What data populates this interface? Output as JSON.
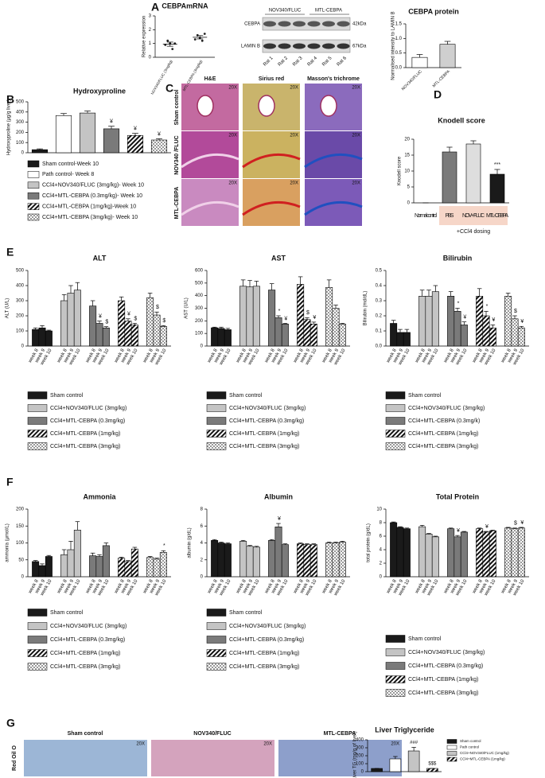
{
  "panel_labels": [
    "A",
    "B",
    "C",
    "D",
    "E",
    "F",
    "G"
  ],
  "blot": {
    "rows": [
      "CEBPA",
      "LAMIN B"
    ],
    "sizes": [
      "42kDa",
      "67kDa"
    ],
    "lanes": [
      "Rat 1",
      "Rat 2",
      "Rat 3",
      "Rat 4",
      "Rat 5",
      "Rat 6"
    ],
    "groups": [
      "NOV340/FLUC",
      "MTL-CEBPA"
    ]
  },
  "histology": {
    "columns": [
      "H&E",
      "Sirius red",
      "Masson's trichrome"
    ],
    "rows": [
      "Sham control",
      "NOV340 /FLUC",
      "MTL-CEBPA"
    ],
    "magnification": "20X"
  },
  "oil_red": {
    "columns": [
      "Sham control",
      "NOV340/FLUC",
      "MTL-CEBPA"
    ],
    "row": "Red Oil O",
    "magnification": "20X"
  },
  "chart_data": [
    {
      "type": "dot",
      "title": "CEBPAmRNA",
      "ylabel": "Relative expression",
      "categories": [
        "NOV340/FLUC (3mg/kg)",
        "MTL-CEBPA (3mg/kg)"
      ],
      "points": [
        [
          0.9,
          1.2,
          1.0,
          0.6,
          1.0
        ],
        [
          1.3,
          1.6,
          1.4,
          1.2,
          1.7
        ]
      ],
      "values": [
        0.95,
        1.45
      ],
      "errors": [
        0.15,
        0.12
      ],
      "ylim": [
        0,
        3
      ],
      "yticks": [
        0,
        1,
        2,
        3
      ]
    },
    {
      "type": "bar",
      "title": "CEBPA protein",
      "ylabel": "Normalised intensity to LAMIN B",
      "categories": [
        "NOV340/FLUC",
        "MTL-CEBPA"
      ],
      "values": [
        0.35,
        0.8
      ],
      "errors": [
        0.1,
        0.1
      ],
      "colors": [
        "#ffffff",
        "#cfcfcf"
      ],
      "patterns": [
        null,
        null
      ],
      "ylim": [
        0,
        1.5
      ],
      "yticks": [
        {
          "value": 0,
          "label": "0.0"
        },
        0.5,
        {
          "value": 1,
          "label": "1.0"
        },
        1.5
      ]
    },
    {
      "type": "bar",
      "title": "Hydroxyproline",
      "ylabel": "Hydroxyproline (µg/g liver)",
      "categories": [
        "Sham control-Week 10",
        "Path control- Week 8",
        "CCl4+NOV340/FLUC (3mg/kg)- Week 10",
        "CCl4+MTL-CEBPA (0.3mg/kg)- Week 10",
        "CCl4+MTL-CEBPA (1mg/kg)-Week 10",
        "CCl4+MTL-CEBPA (3mg/kg)- Week 10"
      ],
      "values": [
        30,
        365,
        390,
        235,
        170,
        125
      ],
      "errors": [
        8,
        20,
        20,
        25,
        20,
        12
      ],
      "annotations": [
        null,
        null,
        null,
        "¥",
        "¥",
        "¥"
      ],
      "colors": [
        "#1a1a1a",
        "#ffffff",
        "#c4c4c4",
        "#7a7a7a",
        "#ffffff",
        "#ffffff"
      ],
      "patterns": [
        null,
        null,
        null,
        null,
        "hatch",
        "check"
      ],
      "legend": "below",
      "ylim": [
        0,
        500
      ],
      "yticks": [
        0,
        100,
        200,
        300,
        400,
        500
      ]
    },
    {
      "type": "bar",
      "title": "Knodell score",
      "ylabel": "Knodell score",
      "categories": [
        "Normal control",
        "PBS",
        "NOV+ FLUC",
        "MTL- CEBPA"
      ],
      "values": [
        0,
        16,
        18.5,
        9
      ],
      "errors": [
        0,
        1.5,
        1,
        1.5
      ],
      "annotations": [
        null,
        null,
        null,
        "***"
      ],
      "group_label": "+CCl4 dosing",
      "colors": [
        "#444444",
        "#7a7a7a",
        "#dedede",
        "#1a1a1a"
      ],
      "patterns": [
        null,
        null,
        null,
        null
      ],
      "ylim": [
        0,
        20
      ],
      "yticks": [
        0,
        5,
        10,
        15,
        20
      ]
    },
    {
      "type": "grouped_bar",
      "title": "ALT",
      "ylabel": "ALT (U/L)",
      "categories": [
        "week 8",
        "week 9",
        "week 10"
      ],
      "ylim": [
        0,
        500
      ],
      "yticks": [
        0,
        100,
        200,
        300,
        400,
        500
      ],
      "series": [
        {
          "name": "Sham control",
          "color": "#1a1a1a",
          "pattern": null,
          "values": [
            110,
            120,
            100
          ],
          "errors": [
            10,
            15,
            5
          ],
          "annotations": [
            null,
            null,
            null
          ]
        },
        {
          "name": "CCl4+NOV340/FLUC (3mg/kg)",
          "color": "#c4c4c4",
          "pattern": null,
          "values": [
            300,
            350,
            370
          ],
          "errors": [
            40,
            50,
            50
          ],
          "annotations": [
            null,
            null,
            null
          ]
        },
        {
          "name": "CCl4+MTL-CEBPA (0.3mg/kg)",
          "color": "#7a7a7a",
          "pattern": null,
          "values": [
            265,
            150,
            120
          ],
          "errors": [
            35,
            15,
            8
          ],
          "annotations": [
            null,
            "¥",
            "$"
          ]
        },
        {
          "name": "CCl4+MTL-CEBPA (1mg/kg)",
          "color": "#ffffff",
          "pattern": "hatch",
          "values": [
            300,
            165,
            140
          ],
          "errors": [
            25,
            15,
            10
          ],
          "annotations": [
            null,
            "¥",
            "$"
          ]
        },
        {
          "name": "CCl4+MTL-CEBPA (3mg/kg)",
          "color": "#ffffff",
          "pattern": "check",
          "values": [
            320,
            205,
            130
          ],
          "errors": [
            30,
            20,
            5
          ],
          "annotations": [
            null,
            "$",
            "$"
          ]
        }
      ]
    },
    {
      "type": "grouped_bar",
      "title": "AST",
      "ylabel": "AST (U/L)",
      "categories": [
        "week 8",
        "week 9",
        "week 10"
      ],
      "ylim": [
        0,
        600
      ],
      "yticks": [
        0,
        100,
        200,
        300,
        400,
        500,
        600
      ],
      "series": [
        {
          "name": "Sham control",
          "color": "#1a1a1a",
          "pattern": null,
          "values": [
            145,
            140,
            130
          ],
          "errors": [
            5,
            10,
            10
          ],
          "annotations": [
            null,
            null,
            null
          ]
        },
        {
          "name": "CCl4+NOV340/FLUC (3mg/kg)",
          "color": "#c4c4c4",
          "pattern": null,
          "values": [
            475,
            470,
            475
          ],
          "errors": [
            50,
            50,
            40
          ],
          "annotations": [
            null,
            null,
            null
          ]
        },
        {
          "name": "CCl4+MTL-CEBPA (0.3mg/kg)",
          "color": "#7a7a7a",
          "pattern": null,
          "values": [
            445,
            225,
            175
          ],
          "errors": [
            50,
            15,
            5
          ],
          "annotations": [
            null,
            "*",
            "¥"
          ]
        },
        {
          "name": "CCl4+MTL-CEBPA (1mg/kg)",
          "color": "#ffffff",
          "pattern": "hatch",
          "values": [
            490,
            210,
            175
          ],
          "errors": [
            60,
            15,
            15
          ],
          "annotations": [
            null,
            "$",
            "¥"
          ]
        },
        {
          "name": "CCl4+MTL-CEBPA (3mg/kg)",
          "color": "#ffffff",
          "pattern": "check",
          "values": [
            465,
            300,
            175
          ],
          "errors": [
            60,
            25,
            5
          ],
          "annotations": [
            null,
            null,
            null
          ]
        }
      ]
    },
    {
      "type": "grouped_bar",
      "title": "Bilirubin",
      "ylabel": "Bilirubin (md/dL)",
      "categories": [
        "week 8",
        "week 9",
        "week 10"
      ],
      "ylim": [
        0,
        0.5
      ],
      "yticks": [
        {
          "value": 0,
          "label": "0.0"
        },
        0.1,
        0.2,
        0.3,
        0.4,
        0.5
      ],
      "series": [
        {
          "name": "Sham control",
          "color": "#1a1a1a",
          "pattern": null,
          "values": [
            0.15,
            0.09,
            0.09
          ],
          "errors": [
            0.02,
            0.02,
            0.02
          ],
          "annotations": [
            null,
            null,
            null
          ]
        },
        {
          "name": "CCl4+NOV340/FLUC (3mg/kg)",
          "color": "#c4c4c4",
          "pattern": null,
          "values": [
            0.33,
            0.33,
            0.36
          ],
          "errors": [
            0.04,
            0.04,
            0.04
          ],
          "annotations": [
            null,
            null,
            null
          ]
        },
        {
          "name": "CCl4+MTL-CEBPA (0.3mg/k)",
          "color": "#7a7a7a",
          "pattern": null,
          "values": [
            0.33,
            0.23,
            0.14
          ],
          "errors": [
            0.03,
            0.02,
            0.02
          ],
          "annotations": [
            null,
            "*",
            "¥"
          ]
        },
        {
          "name": "CCl4+MTL-CEBPA (1mg/kg)",
          "color": "#ffffff",
          "pattern": "hatch",
          "values": [
            0.33,
            0.2,
            0.12
          ],
          "errors": [
            0.05,
            0.03,
            0.02
          ],
          "annotations": [
            null,
            "*",
            "¥"
          ]
        },
        {
          "name": "CCl4+MTL-CEBPA (3mg/kg)",
          "color": "#ffffff",
          "pattern": "check",
          "values": [
            0.33,
            0.18,
            0.12
          ],
          "errors": [
            0.02,
            0.02,
            0.01
          ],
          "annotations": [
            null,
            "$",
            "¥"
          ]
        }
      ]
    },
    {
      "type": "grouped_bar",
      "title": "Ammonia",
      "ylabel": "ammonia (µmol/L)",
      "categories": [
        "week 8",
        "week 9",
        "week 10"
      ],
      "ylim": [
        0,
        200
      ],
      "yticks": [
        0,
        50,
        100,
        150,
        200
      ],
      "series": [
        {
          "name": "Sham control",
          "color": "#1a1a1a",
          "pattern": null,
          "values": [
            45,
            33,
            60
          ],
          "errors": [
            3,
            5,
            3
          ],
          "annotations": [
            null,
            null,
            null
          ]
        },
        {
          "name": "CCl4+NOV340/FLUC (3mg/kg)",
          "color": "#c4c4c4",
          "pattern": null,
          "values": [
            65,
            80,
            138
          ],
          "errors": [
            15,
            25,
            25
          ],
          "annotations": [
            null,
            null,
            null
          ]
        },
        {
          "name": "CCl4+MTL-CEBPA (0.3mg/kg)",
          "color": "#7a7a7a",
          "pattern": null,
          "values": [
            62,
            60,
            92
          ],
          "errors": [
            8,
            5,
            8
          ],
          "annotations": [
            null,
            null,
            null
          ]
        },
        {
          "name": "CCl4+MTL-CEBPA (1mg/kg)",
          "color": "#ffffff",
          "pattern": "hatch",
          "values": [
            55,
            45,
            82
          ],
          "errors": [
            3,
            3,
            5
          ],
          "annotations": [
            null,
            null,
            null
          ]
        },
        {
          "name": "CCl4+MTL-CEBPA (3mg/kg)",
          "color": "#ffffff",
          "pattern": "check",
          "values": [
            57,
            52,
            72
          ],
          "errors": [
            3,
            3,
            5
          ],
          "annotations": [
            null,
            null,
            "*"
          ]
        }
      ]
    },
    {
      "type": "grouped_bar",
      "title": "Albumin",
      "ylabel": "albumin (g/dL)",
      "categories": [
        "week 8",
        "week 9",
        "week 10"
      ],
      "ylim": [
        0,
        8
      ],
      "yticks": [
        0,
        2,
        4,
        6,
        8
      ],
      "series": [
        {
          "name": "Sham control",
          "color": "#1a1a1a",
          "pattern": null,
          "values": [
            4.3,
            4.0,
            3.9
          ],
          "errors": [
            0.1,
            0.1,
            0.1
          ],
          "annotations": [
            null,
            null,
            null
          ]
        },
        {
          "name": "CCl4+NOV340/FLUC (3mg/kg)",
          "color": "#c4c4c4",
          "pattern": null,
          "values": [
            4.2,
            3.6,
            3.5
          ],
          "errors": [
            0.1,
            0.1,
            0.1
          ],
          "annotations": [
            null,
            null,
            null
          ]
        },
        {
          "name": "CCl4+MTL-CEBPA (0.3mg/kg)",
          "color": "#7a7a7a",
          "pattern": null,
          "values": [
            4.3,
            5.9,
            3.8
          ],
          "errors": [
            0.1,
            0.4,
            0.1
          ],
          "annotations": [
            null,
            "¥",
            null
          ]
        },
        {
          "name": "CCl4+MTL-CEBPA (1mg/kg)",
          "color": "#ffffff",
          "pattern": "hatch",
          "values": [
            3.9,
            3.8,
            3.8
          ],
          "errors": [
            0.1,
            0.1,
            0.1
          ],
          "annotations": [
            null,
            null,
            null
          ]
        },
        {
          "name": "CCl4+MTL-CEBPA (3mg/kg)",
          "color": "#ffffff",
          "pattern": "check",
          "values": [
            4.0,
            4.0,
            4.1
          ],
          "errors": [
            0.1,
            0.1,
            0.1
          ],
          "annotations": [
            null,
            null,
            null
          ]
        }
      ]
    },
    {
      "type": "grouped_bar",
      "title": "Total Protein",
      "ylabel": "total protein (g/dL)",
      "categories": [
        "week 8",
        "week 9",
        "week 10"
      ],
      "ylim": [
        0,
        10
      ],
      "yticks": [
        0,
        2,
        4,
        6,
        8,
        10
      ],
      "series": [
        {
          "name": "Sham control",
          "color": "#1a1a1a",
          "pattern": null,
          "values": [
            8.0,
            7.3,
            7.1
          ],
          "errors": [
            0.1,
            0.1,
            0.1
          ],
          "annotations": [
            null,
            null,
            null
          ]
        },
        {
          "name": "CCl4+NOV340/FLUC (3mg/kg)",
          "color": "#c4c4c4",
          "pattern": null,
          "values": [
            7.4,
            6.3,
            5.9
          ],
          "errors": [
            0.2,
            0.1,
            0.1
          ],
          "annotations": [
            null,
            null,
            null
          ]
        },
        {
          "name": "CCl4+MTL-CEBPA (0.3mg/kg)",
          "color": "#7a7a7a",
          "pattern": null,
          "values": [
            7.1,
            5.9,
            6.6
          ],
          "errors": [
            0.1,
            0.2,
            0.1
          ],
          "annotations": [
            null,
            "¥",
            null
          ]
        },
        {
          "name": "CCl4+MTL-CEBPA (1mg/kg)",
          "color": "#ffffff",
          "pattern": "hatch",
          "values": [
            7.1,
            6.6,
            6.8
          ],
          "errors": [
            0.1,
            0.1,
            0.1
          ],
          "annotations": [
            null,
            "¥",
            null
          ]
        },
        {
          "name": "CCl4+MTL-CEBPA (3mg/kg)",
          "color": "#ffffff",
          "pattern": "check",
          "values": [
            7.2,
            7.1,
            7.2
          ],
          "errors": [
            0.1,
            0.1,
            0.1
          ],
          "annotations": [
            null,
            "$",
            "¥"
          ]
        }
      ]
    },
    {
      "type": "bar",
      "title": "Liver Triglyceride",
      "ylabel": "Liver TG (mg/g of liver)",
      "categories": [
        "Sham control",
        "Path control",
        "CCl4+NOV340/FLUC (1mg/kg)",
        "CCl4+MTL-CEBPA (1mg/kg)"
      ],
      "values": [
        40,
        160,
        260,
        40
      ],
      "errors": [
        0,
        30,
        45,
        0
      ],
      "annotations": [
        null,
        null,
        "###",
        "$$$"
      ],
      "colors": [
        "#1a1a1a",
        "#ffffff",
        "#c4c4c4",
        "#ffffff"
      ],
      "patterns": [
        null,
        null,
        null,
        "hatch"
      ],
      "legend": "right",
      "ylim": [
        0,
        400
      ],
      "yticks": [
        0,
        100,
        200,
        300,
        400
      ]
    }
  ]
}
